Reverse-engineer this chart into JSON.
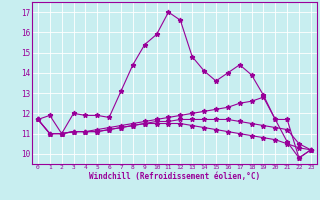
{
  "title": "",
  "xlabel": "Windchill (Refroidissement éolien,°C)",
  "background_color": "#c8eef0",
  "line_color": "#990099",
  "grid_color": "#aadddd",
  "ylim": [
    9.5,
    17.5
  ],
  "xlim": [
    -0.5,
    23.5
  ],
  "yticks": [
    10,
    11,
    12,
    13,
    14,
    15,
    16,
    17
  ],
  "xticks": [
    0,
    1,
    2,
    3,
    4,
    5,
    6,
    7,
    8,
    9,
    10,
    11,
    12,
    13,
    14,
    15,
    16,
    17,
    18,
    19,
    20,
    21,
    22,
    23
  ],
  "line1_y": [
    11.7,
    11.9,
    11.0,
    12.0,
    11.9,
    11.9,
    11.8,
    13.1,
    14.4,
    15.4,
    15.9,
    17.0,
    16.6,
    14.8,
    14.1,
    13.6,
    14.0,
    14.4,
    13.9,
    12.9,
    11.7,
    10.6,
    9.8,
    10.2
  ],
  "line2_y": [
    11.7,
    11.0,
    11.0,
    11.1,
    11.1,
    11.2,
    11.3,
    11.4,
    11.5,
    11.6,
    11.7,
    11.8,
    11.9,
    12.0,
    12.1,
    12.2,
    12.3,
    12.5,
    12.6,
    12.8,
    11.7,
    11.7,
    9.8,
    10.2
  ],
  "line3_y": [
    11.7,
    11.0,
    11.0,
    11.1,
    11.1,
    11.1,
    11.2,
    11.3,
    11.4,
    11.5,
    11.6,
    11.6,
    11.7,
    11.7,
    11.7,
    11.7,
    11.7,
    11.6,
    11.5,
    11.4,
    11.3,
    11.2,
    10.5,
    10.2
  ],
  "line4_y": [
    11.7,
    11.0,
    11.0,
    11.1,
    11.1,
    11.1,
    11.2,
    11.3,
    11.4,
    11.5,
    11.5,
    11.5,
    11.5,
    11.4,
    11.3,
    11.2,
    11.1,
    11.0,
    10.9,
    10.8,
    10.7,
    10.5,
    10.3,
    10.2
  ]
}
